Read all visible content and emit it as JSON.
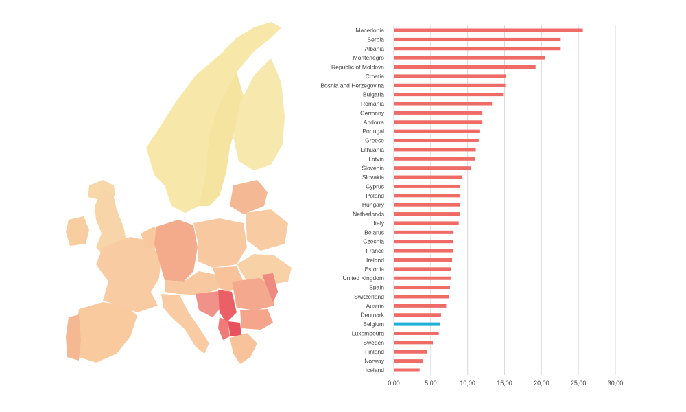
{
  "colors": {
    "bar": "#ee6b66",
    "highlight": "#1fb0d8",
    "map_low": "#f7e7a8",
    "map_mid": "#f8c9a0",
    "map_high": "#f4a48c",
    "map_top": "#ea5f68"
  },
  "chart_data": {
    "type": "bar",
    "orientation": "horizontal",
    "highlight": "Belgium",
    "categories": [
      "Macedonia",
      "Serbia",
      "Albania",
      "Montenegro",
      "Republic of Moldova",
      "Croatia",
      "Bosnia and Herzegovina",
      "Bulgaria",
      "Romania",
      "Germany",
      "Andorra",
      "Portugal",
      "Greece",
      "Lithuania",
      "Latvia",
      "Slovenia",
      "Slovakia",
      "Cyprus",
      "Poland",
      "Hungary",
      "Netherlands",
      "Italy",
      "Belarus",
      "Czechia",
      "France",
      "Ireland",
      "Estonia",
      "United Kingdom",
      "Spain",
      "Switzerland",
      "Austria",
      "Denmark",
      "Belgium",
      "Luxembourg",
      "Sweden",
      "Finland",
      "Norway",
      "Iceland"
    ],
    "values": [
      25.6,
      22.6,
      22.6,
      20.5,
      19.2,
      15.2,
      15.1,
      14.8,
      13.3,
      12.0,
      12.0,
      11.6,
      11.5,
      11.1,
      11.0,
      10.4,
      9.2,
      9.0,
      9.0,
      9.0,
      9.0,
      8.8,
      8.1,
      8.0,
      8.0,
      7.9,
      7.8,
      7.7,
      7.6,
      7.5,
      7.1,
      6.4,
      6.3,
      6.1,
      5.3,
      4.5,
      3.9,
      3.5
    ],
    "xlim": [
      0,
      30
    ],
    "xticks": [
      "0,00",
      "5,00",
      "10,00",
      "15,00",
      "20,00",
      "25,00",
      "30,00"
    ],
    "grid": true
  }
}
